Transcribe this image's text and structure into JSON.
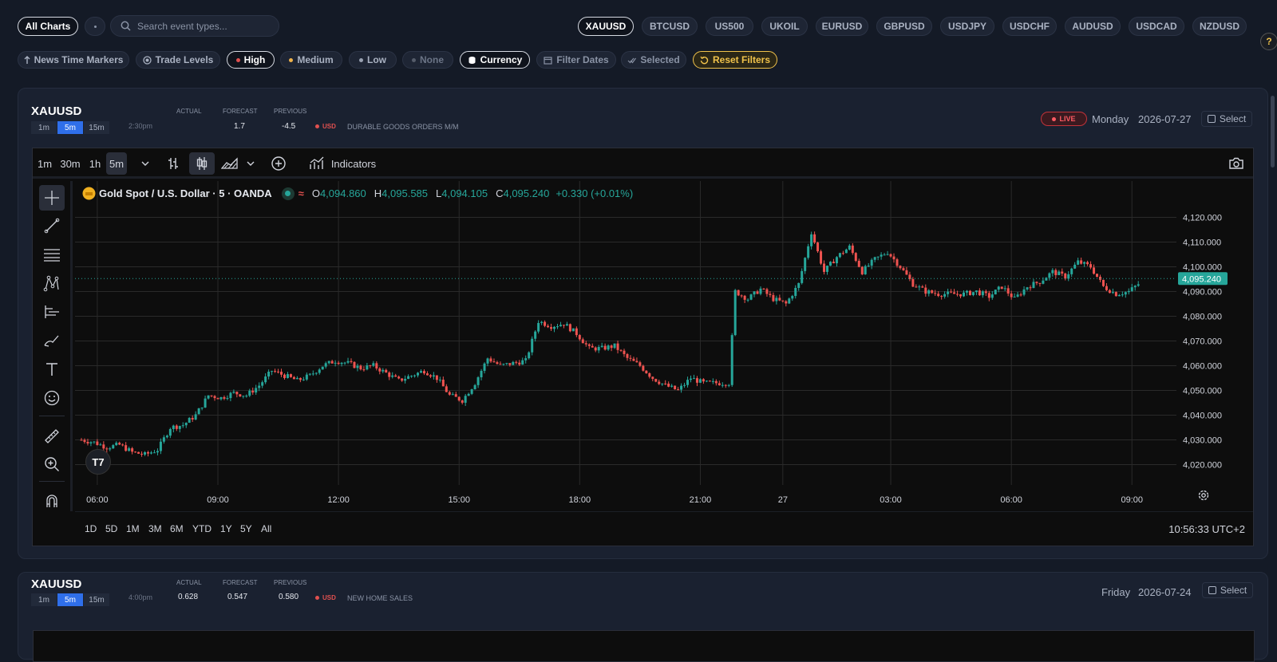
{
  "topbar": {
    "all_charts": "All Charts",
    "search_placeholder": "Search event types...",
    "symbols": [
      "XAUUSD",
      "BTCUSD",
      "US500",
      "UKOIL",
      "EURUSD",
      "GBPUSD",
      "USDJPY",
      "USDCHF",
      "AUDUSD",
      "USDCAD",
      "NZDUSD"
    ],
    "active_symbol": "XAUUSD",
    "help": "?"
  },
  "filters": {
    "news_markers": "News Time Markers",
    "trade_levels": "Trade Levels",
    "high": "High",
    "medium": "Medium",
    "low": "Low",
    "none": "None",
    "currency": "Currency",
    "filter_dates": "Filter Dates",
    "selected": "Selected",
    "reset": "Reset Filters",
    "colors": {
      "high": "#e0504f",
      "medium": "#f0b34b",
      "low": "#9aa2b2",
      "none": "#555c6a"
    }
  },
  "card1": {
    "symbol": "XAUUSD",
    "timeframes": [
      "1m",
      "5m",
      "15m"
    ],
    "active_tf": "5m",
    "time": "2:30pm",
    "actual_label": "ACTUAL",
    "forecast_label": "FORECAST",
    "previous_label": "PREVIOUS",
    "actual": "1.7",
    "forecast": "",
    "previous": "-4.5",
    "currency": "USD",
    "event": "DURABLE GOODS ORDERS M/M",
    "live": "LIVE",
    "day": "Monday",
    "date": "2026-07-27",
    "select": "Select"
  },
  "chart_toolbar": {
    "intervals": [
      "1m",
      "30m",
      "1h",
      "5m"
    ],
    "active_interval": "5m",
    "indicators": "Indicators"
  },
  "legend": {
    "title": "Gold Spot / U.S. Dollar · 5 · OANDA",
    "o_label": "O",
    "o": "4,094.860",
    "h_label": "H",
    "h": "4,095.585",
    "l_label": "L",
    "l": "4,094.105",
    "c_label": "C",
    "c": "4,095.240",
    "change": "+0.330 (+0.01%)"
  },
  "chart_data": {
    "type": "candlestick",
    "y_ticks": [
      "4,120.000",
      "4,110.000",
      "4,100.000",
      "4,090.000",
      "4,080.000",
      "4,070.000",
      "4,060.000",
      "4,050.000",
      "4,040.000",
      "4,030.000",
      "4,020.000"
    ],
    "ylim": [
      4015,
      4125
    ],
    "x_ticks": [
      "06:00",
      "09:00",
      "12:00",
      "15:00",
      "18:00",
      "21:00",
      "27",
      "03:00",
      "06:00",
      "09:00"
    ],
    "last_price": "4,095.240",
    "last_value": 4095.24,
    "series_path": [
      [
        0,
        4030
      ],
      [
        4,
        4029
      ],
      [
        8,
        4027
      ],
      [
        12,
        4028
      ],
      [
        16,
        4025
      ],
      [
        20,
        4024
      ],
      [
        24,
        4026
      ],
      [
        28,
        4035
      ],
      [
        32,
        4036
      ],
      [
        36,
        4040
      ],
      [
        40,
        4048
      ],
      [
        44,
        4047
      ],
      [
        48,
        4049
      ],
      [
        52,
        4048
      ],
      [
        56,
        4052
      ],
      [
        60,
        4058
      ],
      [
        64,
        4056
      ],
      [
        68,
        4054
      ],
      [
        72,
        4056
      ],
      [
        76,
        4060
      ],
      [
        80,
        4062
      ],
      [
        84,
        4061
      ],
      [
        88,
        4059
      ],
      [
        92,
        4060
      ],
      [
        96,
        4057
      ],
      [
        100,
        4054
      ],
      [
        104,
        4056
      ],
      [
        108,
        4058
      ],
      [
        112,
        4055
      ],
      [
        116,
        4048
      ],
      [
        120,
        4046
      ],
      [
        124,
        4053
      ],
      [
        128,
        4063
      ],
      [
        132,
        4060
      ],
      [
        136,
        4061
      ],
      [
        140,
        4062
      ],
      [
        144,
        4078
      ],
      [
        148,
        4076
      ],
      [
        152,
        4077
      ],
      [
        156,
        4073
      ],
      [
        160,
        4067
      ],
      [
        164,
        4067
      ],
      [
        168,
        4068
      ],
      [
        172,
        4063
      ],
      [
        176,
        4060
      ],
      [
        180,
        4055
      ],
      [
        184,
        4052
      ],
      [
        188,
        4050
      ],
      [
        192,
        4055
      ],
      [
        196,
        4053
      ],
      [
        200,
        4053
      ],
      [
        204,
        4053
      ],
      [
        206,
        4090
      ],
      [
        210,
        4087
      ],
      [
        214,
        4091
      ],
      [
        218,
        4087
      ],
      [
        222,
        4085
      ],
      [
        226,
        4093
      ],
      [
        230,
        4114
      ],
      [
        234,
        4098
      ],
      [
        238,
        4104
      ],
      [
        242,
        4108
      ],
      [
        246,
        4098
      ],
      [
        250,
        4103
      ],
      [
        254,
        4106
      ],
      [
        258,
        4100
      ],
      [
        262,
        4093
      ],
      [
        266,
        4090
      ],
      [
        270,
        4089
      ],
      [
        274,
        4089
      ],
      [
        278,
        4089
      ],
      [
        282,
        4090
      ],
      [
        286,
        4088
      ],
      [
        290,
        4092
      ],
      [
        294,
        4087
      ],
      [
        298,
        4092
      ],
      [
        302,
        4094
      ],
      [
        306,
        4098
      ],
      [
        310,
        4096
      ],
      [
        314,
        4102
      ],
      [
        318,
        4100
      ],
      [
        322,
        4092
      ],
      [
        326,
        4089
      ],
      [
        330,
        4090
      ],
      [
        334,
        4094
      ]
    ]
  },
  "range_buttons": [
    "1D",
    "5D",
    "1M",
    "3M",
    "6M",
    "YTD",
    "1Y",
    "5Y",
    "All"
  ],
  "clock": "10:56:33 UTC+2",
  "card2": {
    "symbol": "XAUUSD",
    "timeframes": [
      "1m",
      "5m",
      "15m"
    ],
    "active_tf": "5m",
    "time": "4:00pm",
    "actual_label": "ACTUAL",
    "forecast_label": "FORECAST",
    "previous_label": "PREVIOUS",
    "actual": "0.628",
    "forecast": "0.547",
    "previous": "0.580",
    "currency": "USD",
    "event": "NEW HOME SALES",
    "day": "Friday",
    "date": "2026-07-24",
    "select": "Select"
  }
}
